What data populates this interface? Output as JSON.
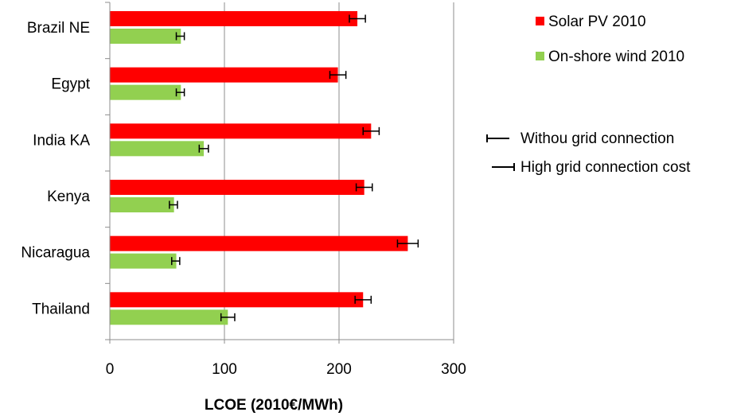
{
  "chart_data": {
    "type": "bar",
    "orientation": "horizontal",
    "categories": [
      "Brazil NE",
      "Egypt",
      "India KA",
      "Kenya",
      "Nicaragua",
      "Thailand"
    ],
    "series": [
      {
        "name": "Solar PV 2010",
        "color": "#ff0000",
        "values": [
          216,
          199,
          228,
          222,
          260,
          221
        ],
        "err_low": [
          209,
          192,
          221,
          215,
          251,
          214
        ],
        "err_high": [
          223,
          206,
          235,
          229,
          269,
          228
        ]
      },
      {
        "name": "On-shore wind 2010",
        "color": "#92d050",
        "values": [
          62,
          62,
          82,
          56,
          58,
          103
        ],
        "err_low": [
          58,
          58,
          78,
          52,
          54,
          97
        ],
        "err_high": [
          65,
          65,
          86,
          59,
          61,
          109
        ]
      }
    ],
    "xlabel": "LCOE (2010€/MWh)",
    "ylabel": "",
    "xlim": [
      0,
      300
    ],
    "xticks": [
      "0",
      "100",
      "200",
      "300"
    ],
    "grid": true,
    "legend_position": "right",
    "error_bar_legend": [
      {
        "label": "Withou grid connection"
      },
      {
        "label": "High grid connection cost"
      }
    ]
  }
}
